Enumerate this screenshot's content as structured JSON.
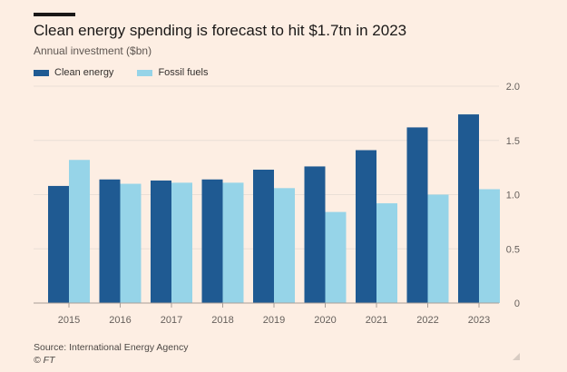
{
  "header": {
    "title": "Clean energy spending is forecast to hit $1.7tn in 2023",
    "subtitle": "Annual investment ($bn)"
  },
  "footer": {
    "source": "Source: International Energy Agency",
    "copyright": "© FT"
  },
  "colors": {
    "background": "#fdeee3",
    "clean": "#1f5a92",
    "fossil": "#96d4e8",
    "grid": "#eadfd6",
    "axis": "#a99e97",
    "tick_text": "#66605c"
  },
  "chart_data": {
    "type": "bar",
    "title": "Clean energy spending is forecast to hit $1.7tn in 2023",
    "subtitle": "Annual investment ($bn)",
    "categories": [
      "2015",
      "2016",
      "2017",
      "2018",
      "2019",
      "2020",
      "2021",
      "2022",
      "2023"
    ],
    "series": [
      {
        "name": "Clean energy",
        "color": "#1f5a92",
        "values": [
          1.08,
          1.14,
          1.13,
          1.14,
          1.23,
          1.26,
          1.41,
          1.62,
          1.74
        ]
      },
      {
        "name": "Fossil fuels",
        "color": "#96d4e8",
        "values": [
          1.32,
          1.1,
          1.11,
          1.11,
          1.06,
          0.84,
          0.92,
          1.0,
          1.05
        ]
      }
    ],
    "ylim": [
      0,
      2.0
    ],
    "yticks": [
      "0",
      "0.5",
      "1.0",
      "1.5",
      "2.0"
    ],
    "ytick_values": [
      0,
      0.5,
      1.0,
      1.5,
      2.0
    ],
    "xlabel": "",
    "ylabel": "",
    "grid": true,
    "legend_position": "top-left",
    "y_axis_side": "right"
  }
}
